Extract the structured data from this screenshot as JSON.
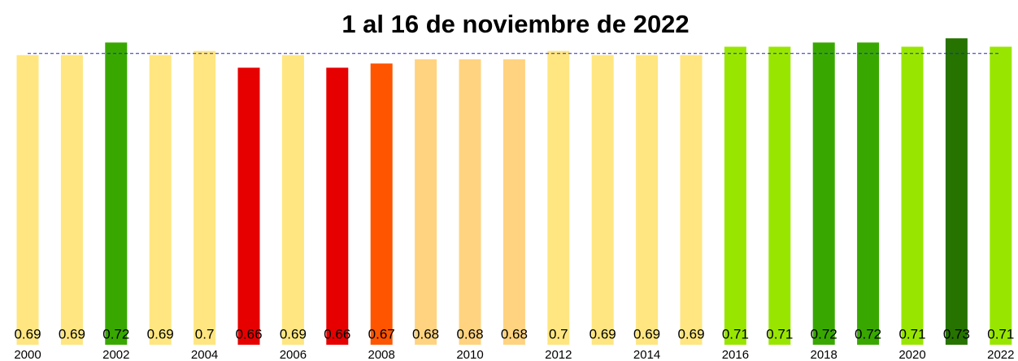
{
  "chart_data": {
    "type": "bar",
    "title": "1 al 16 de noviembre de 2022",
    "categories": [
      "2000",
      null,
      "2002",
      null,
      "2004",
      null,
      "2006",
      null,
      "2008",
      null,
      "2010",
      null,
      "2012",
      null,
      "2014",
      null,
      "2016",
      null,
      "2018",
      null,
      "2020",
      null,
      "2022"
    ],
    "values": [
      0.69,
      0.69,
      0.72,
      0.69,
      0.7,
      0.66,
      0.69,
      0.66,
      0.67,
      0.68,
      0.68,
      0.68,
      0.7,
      0.69,
      0.69,
      0.69,
      0.71,
      0.71,
      0.72,
      0.72,
      0.71,
      0.73,
      0.71
    ],
    "colors": [
      "#ffe680",
      "#ffe680",
      "#38a800",
      "#ffe680",
      "#ffe680",
      "#e60000",
      "#ffe680",
      "#e60000",
      "#ff5500",
      "#ffd37f",
      "#ffd37f",
      "#ffd37f",
      "#ffe680",
      "#ffe680",
      "#ffe680",
      "#ffe680",
      "#98e600",
      "#98e600",
      "#38a800",
      "#38a800",
      "#98e600",
      "#267300",
      "#98e600"
    ],
    "ylim": [
      0,
      0.8
    ],
    "reference_line": {
      "value": 0.694,
      "color": "#2020d0",
      "style": "dashed"
    }
  }
}
